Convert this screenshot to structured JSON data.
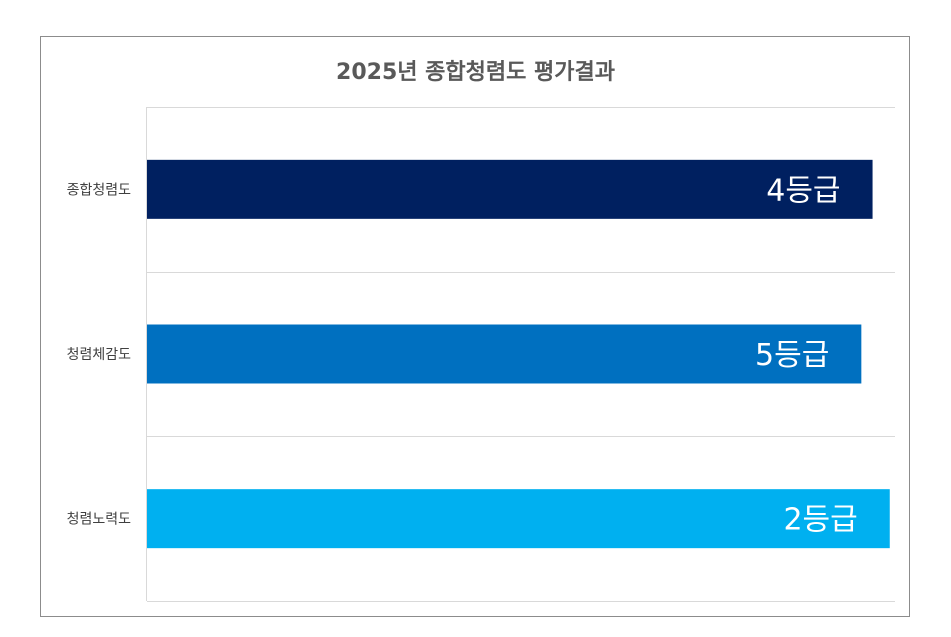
{
  "chart_data": {
    "type": "bar",
    "orientation": "horizontal",
    "title": "2025년 종합청렴도 평가결과",
    "categories": [
      "종합청렴도",
      "청렴체감도",
      "청렴노력도"
    ],
    "values": [
      97,
      95.5,
      99.3
    ],
    "data_labels": [
      "4등급",
      "5등급",
      "2등급"
    ],
    "xlim": [
      0,
      100
    ],
    "xaxis_visible": false,
    "grid": true,
    "legend": "none",
    "colors": [
      "#002060",
      "#0070C0",
      "#00B0F0"
    ]
  }
}
